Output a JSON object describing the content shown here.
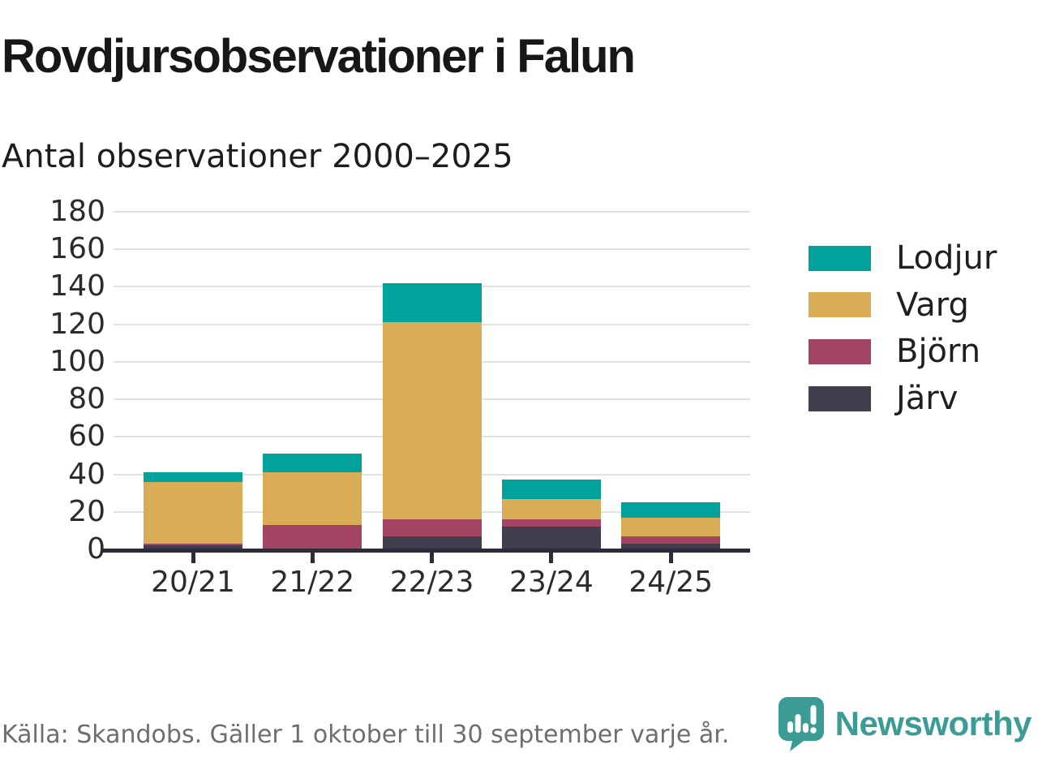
{
  "header": {
    "title": "Rovdjursobservationer i Falun",
    "subtitle": "Antal observationer 2000–2025"
  },
  "chart_data": {
    "type": "bar",
    "stacked": true,
    "title": "Rovdjursobservationer i Falun",
    "subtitle": "Antal observationer 2000–2025",
    "categories": [
      "20/21",
      "21/22",
      "22/23",
      "23/24",
      "24/25"
    ],
    "series": [
      {
        "name": "Lodjur",
        "color": "#00a29b",
        "values": [
          5,
          10,
          21,
          10,
          8
        ]
      },
      {
        "name": "Varg",
        "color": "#d9ad55",
        "values": [
          33,
          28,
          105,
          11,
          10
        ]
      },
      {
        "name": "Björn",
        "color": "#a34463",
        "values": [
          1,
          13,
          9,
          4,
          4
        ]
      },
      {
        "name": "Järv",
        "color": "#423e4d",
        "values": [
          2,
          0,
          7,
          12,
          3
        ]
      }
    ],
    "stack_order_bottom_to_top": [
      "Järv",
      "Björn",
      "Varg",
      "Lodjur"
    ],
    "totals": [
      41,
      51,
      142,
      37,
      25
    ],
    "legend": [
      "Lodjur",
      "Varg",
      "Björn",
      "Järv"
    ],
    "legend_position": "right",
    "xlabel": "",
    "ylabel": "",
    "ylim": [
      0,
      180
    ],
    "ytick_step": 20,
    "ytick_labels": [
      "0",
      "20",
      "40",
      "60",
      "80",
      "100",
      "120",
      "140",
      "160",
      "180"
    ],
    "grid": true
  },
  "footer": {
    "source_note": "Källa: Skandobs. Gäller 1 oktober till 30 september varje år.",
    "brand_name": "Newsworthy"
  },
  "colors": {
    "accent_teal": "#00a29b",
    "gold": "#d9ad55",
    "maroon": "#a34463",
    "dark_slate": "#423e4d",
    "axis": "#2f2b3a",
    "gridline": "#e1e1e1",
    "footer_text": "#6e6e6e",
    "brand_teal": "#3b9c95"
  }
}
